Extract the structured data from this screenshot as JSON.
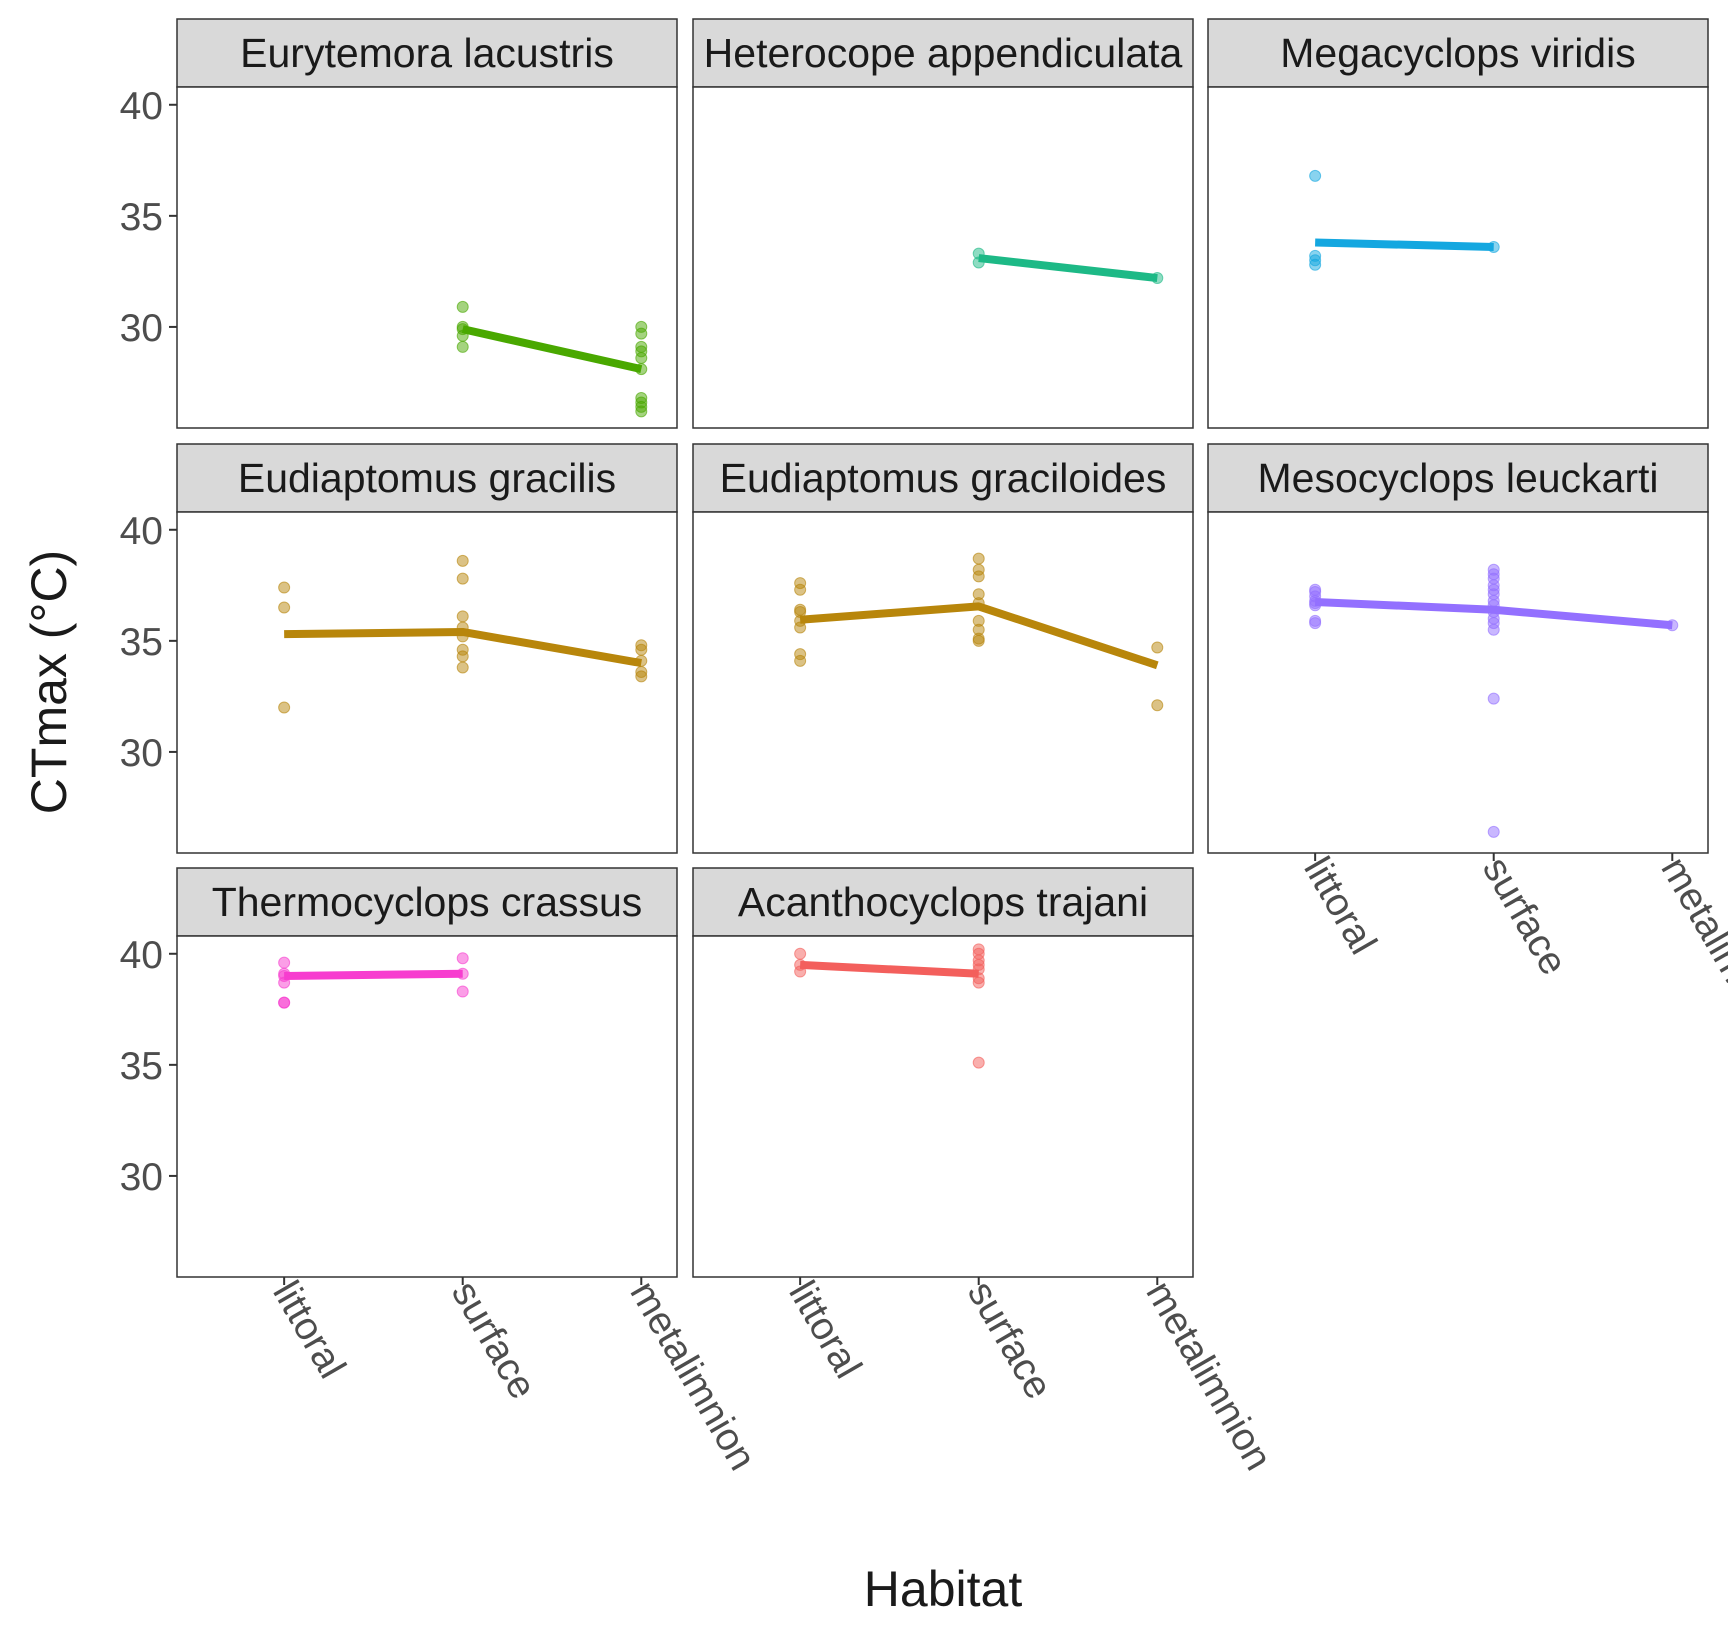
{
  "chart_data": {
    "type": "line",
    "subtype": "faceted line + jittered scatter (facet_wrap, 3 columns)",
    "xlabel": "Habitat",
    "ylabel": "CTmax (°C)",
    "categories": [
      "littoral",
      "surface",
      "metalimnion"
    ],
    "ylim": [
      25.45,
      40.8
    ],
    "yticks": [
      30,
      35,
      40
    ],
    "grid": false,
    "legend": "none",
    "panels": [
      {
        "title": "Eurytemora lacustris",
        "color": "#49A800",
        "means": {
          "surface": 29.9,
          "metalimnion": 28.1
        },
        "points": {
          "surface": [
            30.9,
            30.0,
            29.9,
            29.6,
            29.1
          ],
          "metalimnion": [
            30.0,
            29.7,
            29.1,
            28.9,
            28.6,
            28.1,
            26.8,
            26.6,
            26.4,
            26.2
          ]
        }
      },
      {
        "title": "Heterocope appendiculata",
        "color": "#1DB986",
        "means": {
          "surface": 33.1,
          "metalimnion": 32.2
        },
        "points": {
          "surface": [
            33.3,
            32.9
          ],
          "metalimnion": [
            32.2
          ]
        }
      },
      {
        "title": "Megacyclops viridis",
        "color": "#14A7E0",
        "means": {
          "littoral": 33.8,
          "surface": 33.6
        },
        "points": {
          "littoral": [
            36.8,
            33.2,
            33.0,
            32.8
          ],
          "surface": [
            33.6
          ]
        }
      },
      {
        "title": "Eudiaptomus gracilis",
        "color": "#B8860B",
        "means": {
          "littoral": 35.3,
          "surface": 35.4,
          "metalimnion": 34.0
        },
        "points": {
          "littoral": [
            37.4,
            36.5,
            32.0
          ],
          "surface": [
            38.6,
            37.8,
            36.1,
            35.6,
            35.2,
            34.6,
            34.3,
            33.8
          ],
          "metalimnion": [
            34.8,
            34.6,
            34.1,
            33.6,
            33.4
          ]
        }
      },
      {
        "title": "Eudiaptomus graciloides",
        "color": "#B8860B",
        "means": {
          "littoral": 35.95,
          "surface": 36.55,
          "metalimnion": 33.9
        },
        "points": {
          "littoral": [
            37.6,
            37.3,
            36.4,
            36.3,
            35.9,
            35.6,
            34.4,
            34.1
          ],
          "surface": [
            38.7,
            38.2,
            37.9,
            37.1,
            36.7,
            35.9,
            35.5,
            35.1,
            35.0
          ],
          "metalimnion": [
            34.7,
            32.1
          ]
        }
      },
      {
        "title": "Mesocyclops leuckarti",
        "color": "#9370FF",
        "means": {
          "littoral": 36.75,
          "surface": 36.4,
          "metalimnion": 35.7
        },
        "points": {
          "littoral": [
            37.3,
            37.2,
            37.0,
            36.8,
            36.7,
            36.6,
            35.9,
            35.8
          ],
          "surface": [
            38.2,
            38.0,
            37.8,
            37.5,
            37.3,
            37.1,
            36.8,
            36.6,
            36.3,
            36.0,
            35.8,
            35.5,
            32.4,
            26.4
          ],
          "metalimnion": [
            35.7
          ]
        }
      },
      {
        "title": "Thermocyclops crassus",
        "color": "#F73DCF",
        "means": {
          "littoral": 39.0,
          "surface": 39.1
        },
        "points": {
          "littoral": [
            39.6,
            39.1,
            39.0,
            38.7,
            37.8,
            37.8
          ],
          "surface": [
            39.8,
            39.1,
            38.3
          ]
        }
      },
      {
        "title": "Acanthocyclops trajani",
        "color": "#F35F5C",
        "means": {
          "littoral": 39.5,
          "surface": 39.1
        },
        "points": {
          "littoral": [
            40.0,
            39.5,
            39.2
          ],
          "surface": [
            40.2,
            40.0,
            39.7,
            39.5,
            39.3,
            38.9,
            38.7,
            35.1
          ]
        }
      }
    ]
  }
}
